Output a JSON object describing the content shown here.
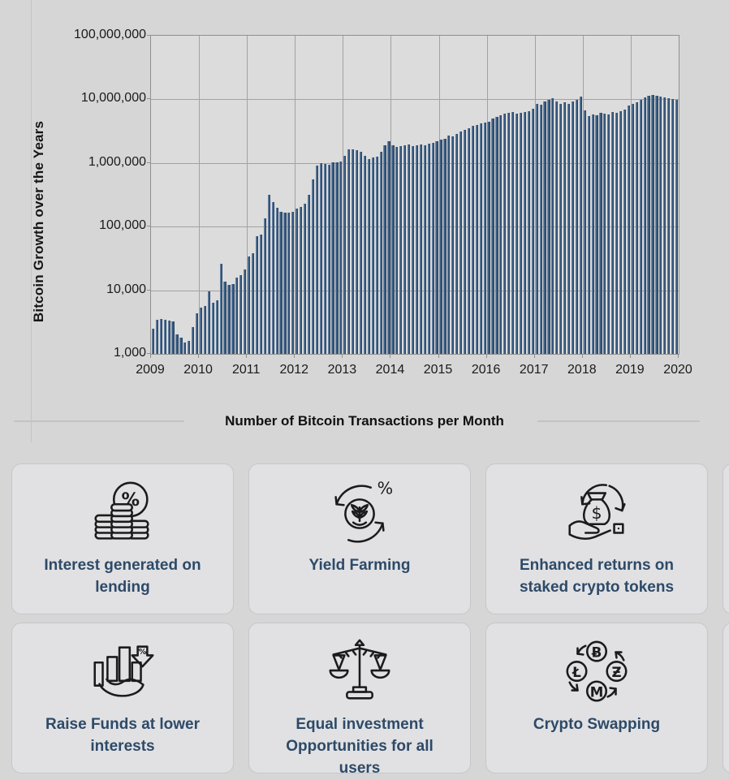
{
  "page": {
    "background_color": "#d6d6d6",
    "card_background_color": "#e1e1e3",
    "card_text_color": "#2d4a68",
    "bar_color_dark": "#27425f",
    "bar_color_light": "#8ba3bd",
    "gridline_color": "#a2a2a2"
  },
  "chart": {
    "y_axis_title": "Bitcoin Growth over the Years",
    "caption": "Number of Bitcoin Transactions per Month",
    "y_tick_labels": [
      "100,000,000",
      "10,000,000",
      "1,000,000",
      "100,000",
      "10,000",
      "1,000"
    ],
    "x_tick_labels": [
      "2009",
      "2010",
      "2011",
      "2012",
      "2013",
      "2014",
      "2015",
      "2016",
      "2017",
      "2018",
      "2019",
      "2020"
    ]
  },
  "chart_data": {
    "type": "bar",
    "title": "",
    "xlabel": "Number of Bitcoin Transactions per Month",
    "ylabel": "Bitcoin Growth over the Years",
    "y_scale": "log",
    "ylim": [
      1000,
      100000000
    ],
    "x_range": [
      "2009",
      "2020"
    ],
    "frequency": "monthly",
    "start_month": "2009-01",
    "grid": true,
    "values": [
      2500,
      3400,
      3500,
      3450,
      3350,
      3250,
      2050,
      1800,
      1500,
      1600,
      2600,
      4400,
      5300,
      5600,
      9600,
      6300,
      6900,
      26000,
      13500,
      12200,
      12600,
      16000,
      17500,
      21000,
      34000,
      38000,
      71000,
      76000,
      134000,
      315000,
      240000,
      198000,
      173000,
      164000,
      166000,
      173000,
      192000,
      201000,
      232000,
      312000,
      560000,
      900000,
      1000000,
      970000,
      950000,
      1010000,
      1030000,
      1060000,
      1300000,
      1620000,
      1660000,
      1600000,
      1500000,
      1310000,
      1160000,
      1210000,
      1260000,
      1500000,
      1900000,
      2200000,
      1900000,
      1800000,
      1860000,
      1910000,
      1960000,
      1850000,
      1900000,
      1950000,
      1920000,
      2010000,
      2100000,
      2210000,
      2300000,
      2420000,
      2700000,
      2620000,
      2900000,
      3100000,
      3300000,
      3520000,
      3800000,
      4000000,
      4200000,
      4320000,
      4500000,
      5000000,
      5250000,
      5600000,
      5900000,
      6100000,
      6300000,
      6050000,
      6200000,
      6420000,
      6600000,
      7100000,
      8600000,
      8200000,
      9300000,
      9800000,
      10300000,
      9400000,
      8600000,
      8900000,
      8400000,
      9200000,
      9900000,
      11000000,
      6700000,
      5400000,
      5800000,
      5600000,
      6100000,
      6000000,
      5800000,
      6300000,
      6100000,
      6600000,
      6900000,
      7900000,
      8600000,
      9100000,
      9700000,
      10600000,
      11400000,
      11600000,
      11300000,
      11000000,
      10800000,
      10500000,
      10200000,
      9800000
    ]
  },
  "cards": [
    {
      "label": "Interest generated on lending",
      "icon": "coins-percent"
    },
    {
      "label": "Yield Farming",
      "icon": "plant-cycle-percent"
    },
    {
      "label": "Enhanced returns on staked crypto tokens",
      "icon": "moneybag-hand-cycle"
    },
    {
      "label": "Raise Funds at lower interests",
      "icon": "hand-barchart-discount"
    },
    {
      "label": "Equal investment Opportunities for all users",
      "icon": "balance-scale"
    },
    {
      "label": "Crypto Swapping",
      "icon": "crypto-coins-swap"
    }
  ]
}
